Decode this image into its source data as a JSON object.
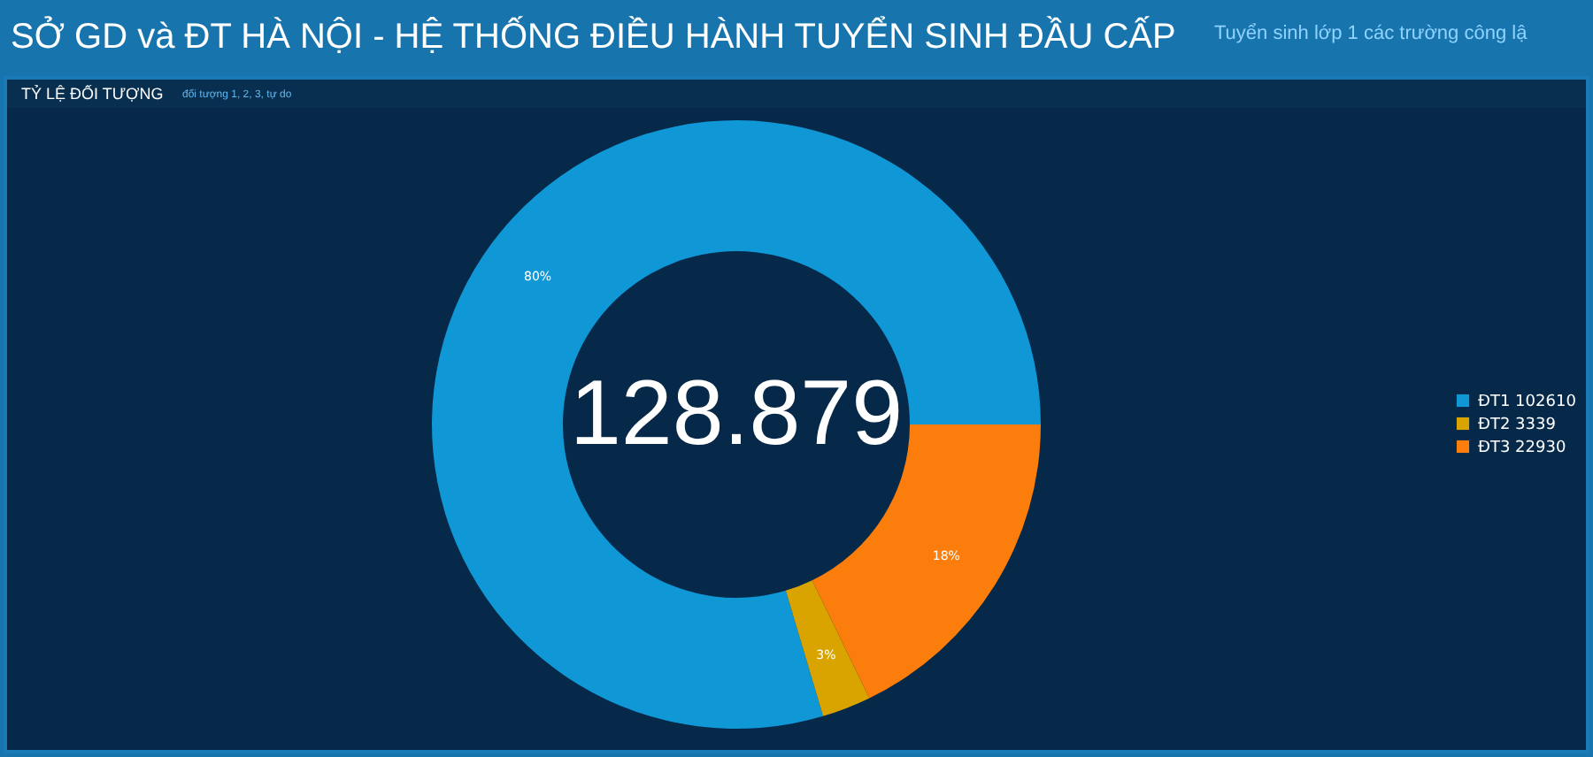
{
  "chart_data": {
    "type": "donut",
    "title": "SỞ GD và ĐT HÀ NỘI - HỆ THỐNG ĐIỀU HÀNH TUYỂN SINH ĐẦU CẤP",
    "subtitle": "Tuyển sinh lớp 1 các trường công lậ",
    "annotations": [
      "TỶ LỆ ĐỐI TƯỢNG",
      "đối tượng 1, 2, 3, tự do",
      "128.879"
    ],
    "categories": [
      "ĐT1  102610",
      "ĐT2  3339",
      "ĐT3  22930"
    ],
    "values": [
      79.6,
      2.6,
      17.8
    ],
    "colors": [
      "#0f97d6",
      "#d9a400",
      "#fb7d0b"
    ],
    "value_labels": [
      "80%",
      "3%",
      "18%"
    ],
    "legend": "right"
  }
}
